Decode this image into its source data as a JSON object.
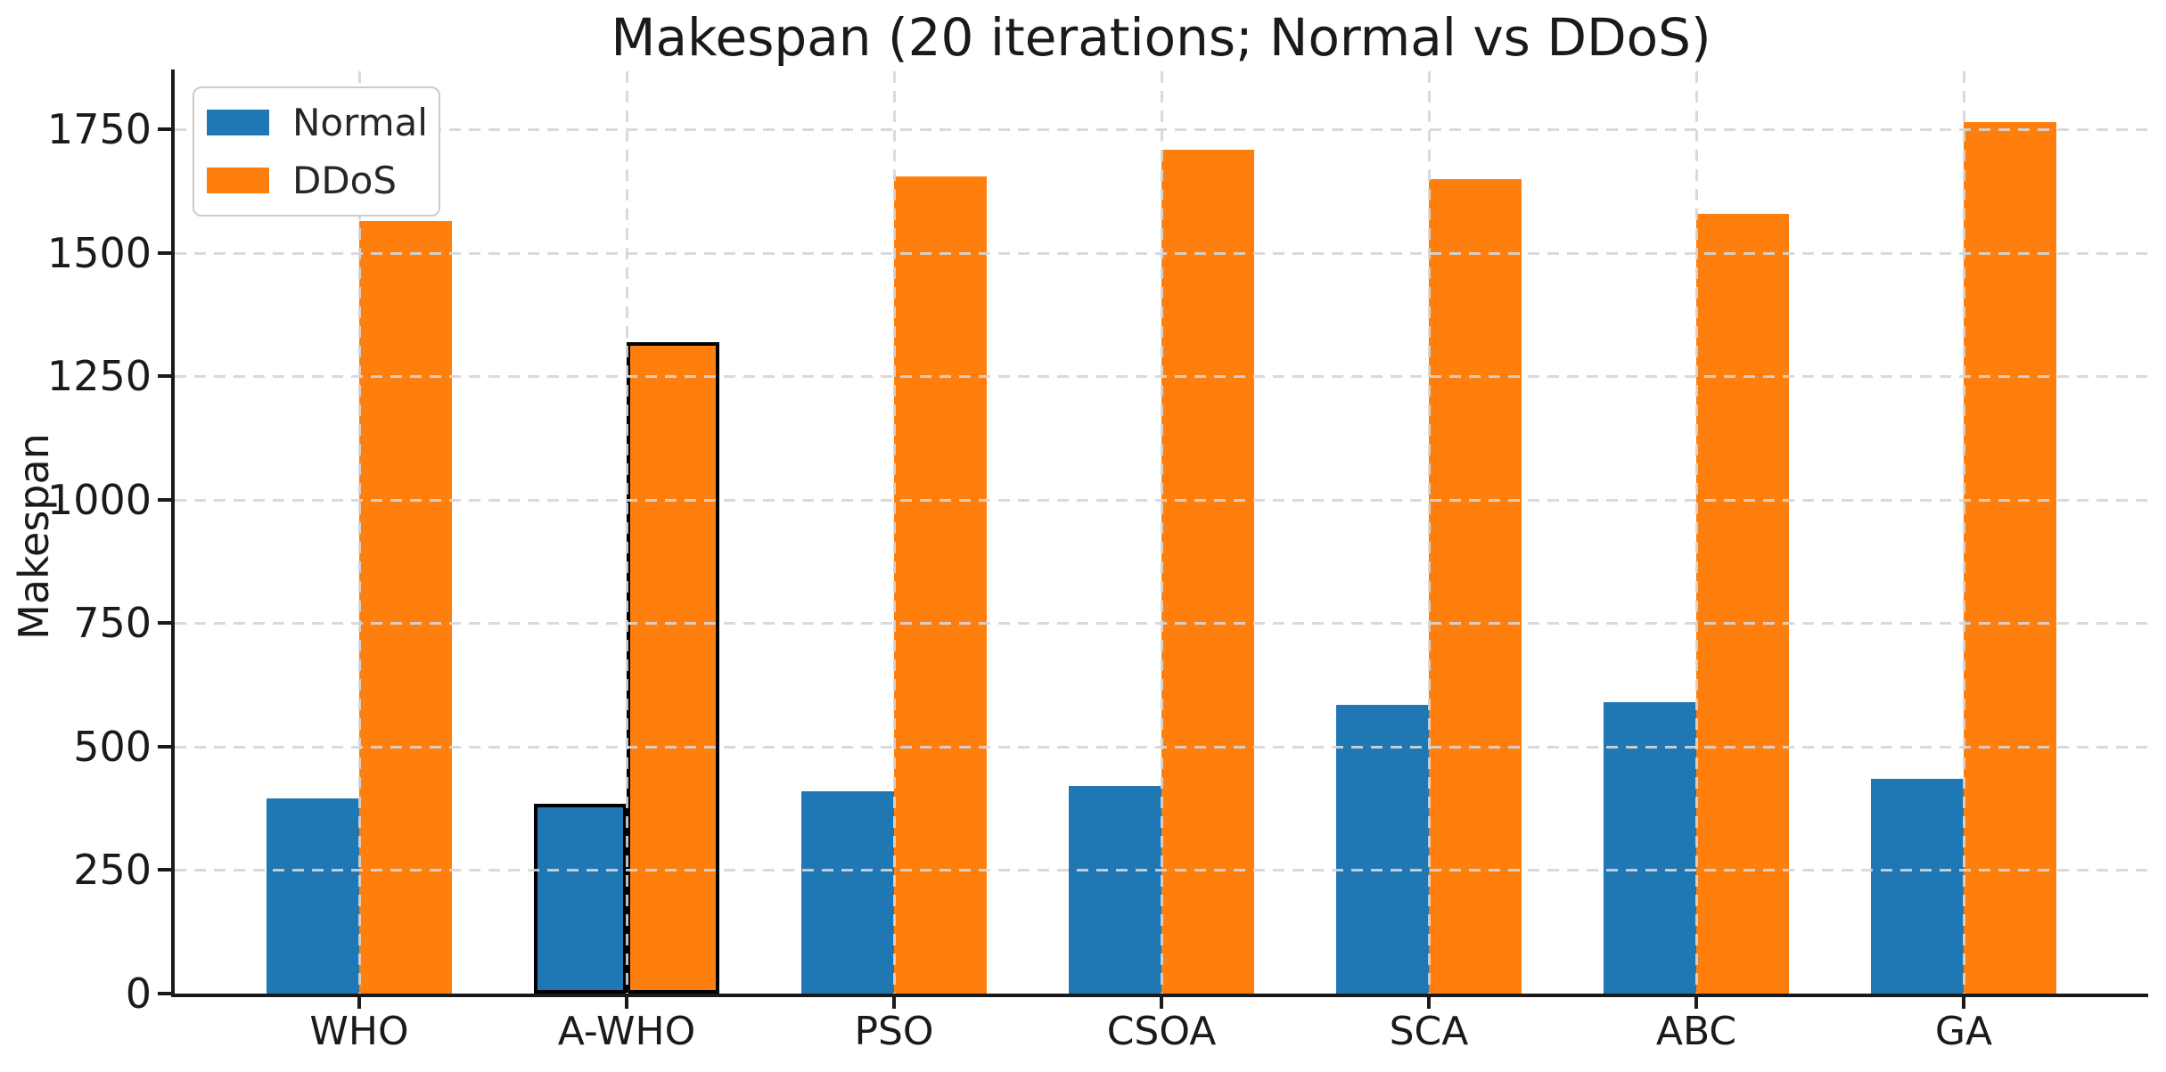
{
  "chart_data": {
    "type": "bar",
    "title": "Makespan (20 iterations; Normal vs DDoS)",
    "xlabel": "",
    "ylabel": "Makespan",
    "categories": [
      "WHO",
      "A-WHO",
      "PSO",
      "CSOA",
      "SCA",
      "ABC",
      "GA"
    ],
    "series": [
      {
        "name": "Normal",
        "color": "#1f77b4",
        "values": [
          395,
          385,
          410,
          420,
          585,
          590,
          435
        ]
      },
      {
        "name": "DDoS",
        "color": "#ff7f0e",
        "values": [
          1565,
          1320,
          1655,
          1710,
          1650,
          1580,
          1765
        ]
      }
    ],
    "highlighted_category": "A-WHO",
    "highlight_edge_color": "#000000",
    "yticks": [
      0,
      250,
      500,
      750,
      1000,
      1250,
      1500,
      1750
    ],
    "ylim": [
      0,
      1868
    ],
    "grid": true,
    "grid_style": "dashed",
    "legend_position": "upper left",
    "legend_labels": [
      "Normal",
      "DDoS"
    ]
  }
}
